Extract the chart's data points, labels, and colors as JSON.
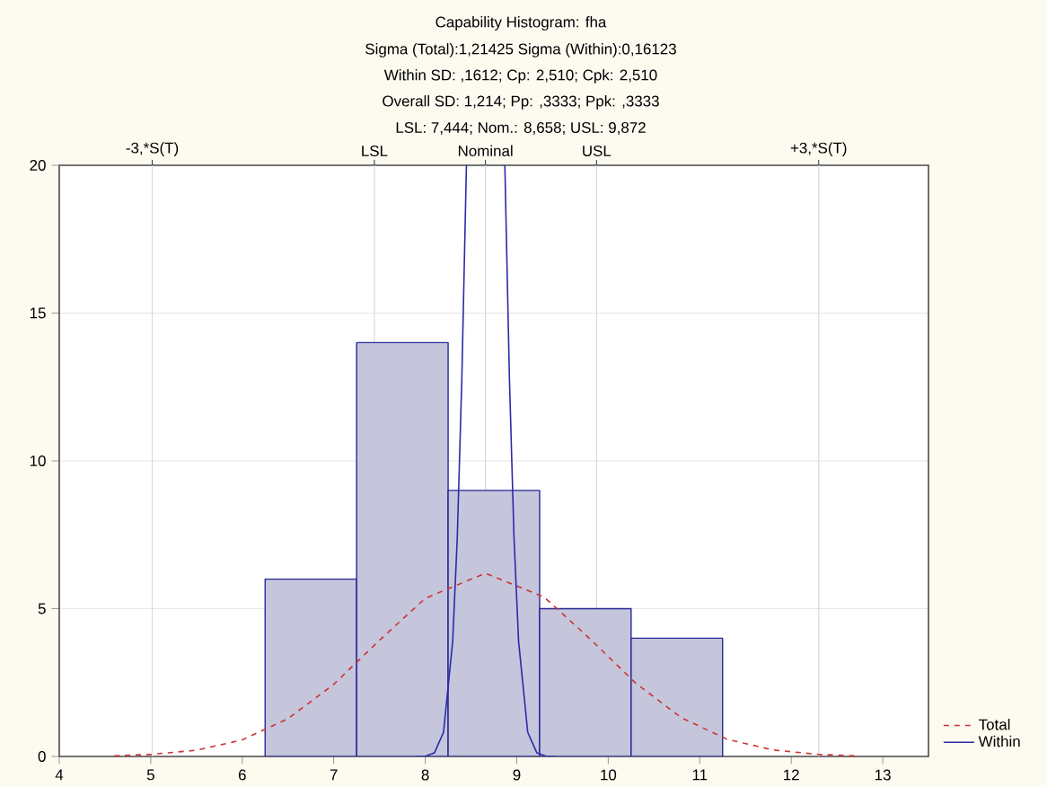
{
  "chart_data": {
    "type": "histogram",
    "title": "Capability Histogram: fha",
    "annotations": [
      "Sigma (Total):1,21425 Sigma (Within):0,16123",
      "Within SD: ,1612; Cp: 2,510; Cpk: 2,510",
      "Overall SD: 1,214; Pp: ,3333; Ppk: ,3333",
      "LSL: 7,444; Nom.: 8,658; USL: 9,872"
    ],
    "bins": [
      6.25,
      7.25,
      8.25,
      9.25,
      10.25,
      11.25
    ],
    "values": [
      6,
      14,
      9,
      5,
      4
    ],
    "color": "#c5c5dc",
    "series": [
      {
        "name": "Total",
        "type": "line",
        "color": "#cc3333",
        "line_style": "dashed",
        "x": [
          4.6,
          5,
          5.5,
          6,
          6.5,
          7,
          7.5,
          8,
          8.658,
          9.3,
          9.8,
          10.3,
          10.8,
          11.3,
          11.8,
          12.3,
          12.7
        ],
        "values": [
          0.02,
          0.07,
          0.21,
          0.56,
          1.28,
          2.44,
          3.93,
          5.35,
          6.2,
          5.39,
          3.98,
          2.48,
          1.31,
          0.58,
          0.22,
          0.07,
          0.02
        ]
      },
      {
        "name": "Within",
        "type": "line",
        "color": "#2a2aa8",
        "line_style": "solid",
        "x": [
          7.9,
          8.0,
          8.1,
          8.2,
          8.3,
          8.35,
          8.4,
          8.45,
          8.66,
          8.87,
          8.92,
          8.97,
          9.02,
          9.12,
          9.22,
          9.32,
          9.42
        ],
        "values": [
          0,
          0.01,
          0.12,
          0.82,
          3.9,
          7.4,
          12.8,
          20,
          null,
          20,
          12.8,
          7.4,
          3.9,
          0.82,
          0.12,
          0.01,
          0
        ]
      }
    ],
    "xlim": [
      4,
      13.5
    ],
    "ylim": [
      0,
      20
    ],
    "xticks": [
      4,
      5,
      6,
      7,
      8,
      9,
      10,
      11,
      12,
      13
    ],
    "yticks": [
      0,
      5,
      10,
      15,
      20
    ],
    "ref_lines": [
      {
        "axis": "x",
        "value": 5.016,
        "label": "-3,*S(T)",
        "color": "#d9d9d9"
      },
      {
        "axis": "x",
        "value": 7.444,
        "label": "LSL",
        "color": "#d9d9d9"
      },
      {
        "axis": "x",
        "value": 8.658,
        "label": "Nominal",
        "color": "#d9d9d9"
      },
      {
        "axis": "x",
        "value": 9.872,
        "label": "USL",
        "color": "#d9d9d9"
      },
      {
        "axis": "x",
        "value": 12.3,
        "label": "+3,*S(T)",
        "color": "#d9d9d9"
      }
    ],
    "grid": "y",
    "legend": "bottom right"
  }
}
